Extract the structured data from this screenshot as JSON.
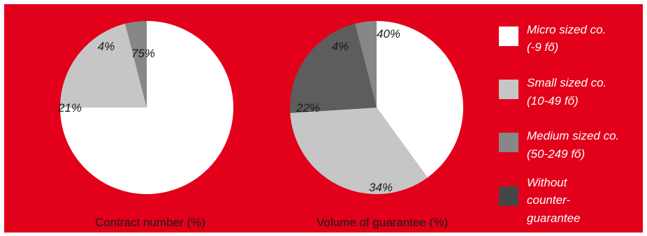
{
  "chart_data": [
    {
      "type": "pie",
      "caption": "Contract number (%)",
      "slices": [
        {
          "category": "Micro sized co. (-9 fő)",
          "value": 75,
          "label": "75%",
          "color": "#ffffff"
        },
        {
          "category": "Small sized co. (10-49 fő)",
          "value": 21,
          "label": "21%",
          "color": "#c6c6c6"
        },
        {
          "category": "Medium sized co. (50-249 fő)",
          "value": 4,
          "label": "4%",
          "color": "#878787"
        }
      ]
    },
    {
      "type": "pie",
      "caption": "Volume of guarantee (%)",
      "slices": [
        {
          "category": "Micro sized co. (-9 fő)",
          "value": 40,
          "label": "40%",
          "color": "#ffffff"
        },
        {
          "category": "Small sized co. (10-49 fő)",
          "value": 34,
          "label": "34%",
          "color": "#c6c6c6"
        },
        {
          "category": "Without counter-guarantee",
          "value": 22,
          "label": "22%",
          "color": "#5d5d5d"
        },
        {
          "category": "Medium sized co. (50-249 fő)",
          "value": 4,
          "label": "4%",
          "color": "#878787"
        }
      ]
    }
  ],
  "legend": [
    {
      "lines": [
        "Micro sized co.",
        "(-9 fő)"
      ],
      "color": "#ffffff"
    },
    {
      "lines": [
        "Small sized co.",
        "(10-49 fő)"
      ],
      "color": "#c6c6c6"
    },
    {
      "lines": [
        "Medium sized co.",
        "(50-249 fő)"
      ],
      "color": "#878787"
    },
    {
      "lines": [
        "Without",
        "counter-",
        "guarantee"
      ],
      "color": "#454545"
    }
  ],
  "background_color": "#e2001a"
}
